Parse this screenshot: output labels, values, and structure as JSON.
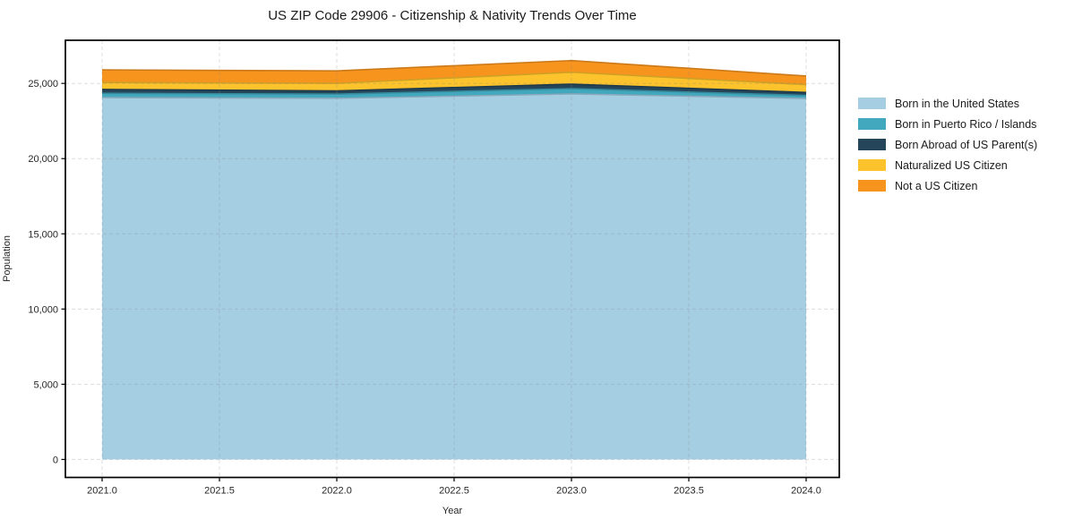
{
  "figure": {
    "title": "US ZIP Code 29906 - Citizenship & Nativity Trends Over Time"
  },
  "chart_data": {
    "type": "area",
    "stacked": true,
    "title": "US ZIP Code 29906 - Citizenship & Nativity Trends Over Time",
    "xlabel": "Year",
    "ylabel": "Population",
    "x": [
      2021,
      2022,
      2023,
      2024
    ],
    "series": [
      {
        "name": "Born in the United States",
        "color": "#a5cee3",
        "values": [
          24060,
          24010,
          24300,
          24000
        ]
      },
      {
        "name": "Born in Puerto Rico / Islands",
        "color": "#42a8be",
        "values": [
          280,
          280,
          350,
          200
        ]
      },
      {
        "name": "Born Abroad of US Parent(s)",
        "color": "#25465a",
        "values": [
          260,
          215,
          300,
          200
        ]
      },
      {
        "name": "Naturalized US Citizen",
        "color": "#fcc32d",
        "values": [
          460,
          500,
          790,
          520
        ]
      },
      {
        "name": "Not a US Citizen",
        "color": "#f7941e",
        "values": [
          840,
          830,
          780,
          570
        ]
      }
    ],
    "totals": [
      25900,
      25835,
      26520,
      25490
    ],
    "x_tick_values": [
      2021.0,
      2021.5,
      2022.0,
      2022.5,
      2023.0,
      2023.5,
      2024.0
    ],
    "x_tick_labels": [
      "2021.0",
      "2021.5",
      "2022.0",
      "2022.5",
      "2023.0",
      "2023.5",
      "2024.0"
    ],
    "y_tick_values": [
      0,
      5000,
      10000,
      15000,
      20000,
      25000
    ],
    "y_tick_labels": [
      "0",
      "5,000",
      "10,000",
      "15,000",
      "20,000",
      "25,000"
    ],
    "xlim": [
      2020.84,
      2024.14
    ],
    "ylim": [
      -1200,
      27870
    ],
    "grid": "dashed, both axes, drawn over data",
    "legend_position": "right, frameless",
    "spine_color": "#000000",
    "tick_label_color": "#262626"
  }
}
